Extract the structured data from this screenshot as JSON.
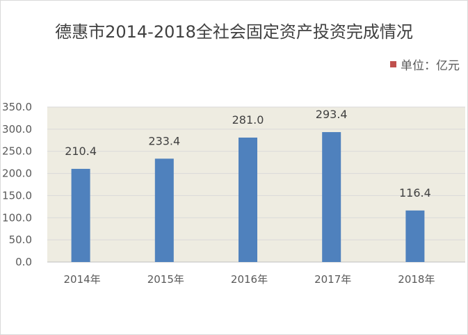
{
  "chart_data": {
    "type": "bar",
    "title": "德惠市2014-2018全社会固定资产投资完成情况",
    "legend": "单位：亿元",
    "categories": [
      "2014年",
      "2015年",
      "2016年",
      "2017年",
      "2018年"
    ],
    "values": [
      210.4,
      233.4,
      281.0,
      293.4,
      116.4
    ],
    "data_labels": [
      "210.4",
      "233.4",
      "281.0",
      "293.4",
      "116.4"
    ],
    "yticks": [
      "0.0",
      "50.0",
      "100.0",
      "150.0",
      "200.0",
      "250.0",
      "300.0",
      "350.0"
    ],
    "ylim": [
      0,
      350
    ],
    "grid": true,
    "legend_position": "top-right",
    "colors": {
      "bar": "#4f81bd",
      "legend": "#c0504d",
      "plot_bg": "#eeece1",
      "grid": "#d9d9d9"
    }
  }
}
